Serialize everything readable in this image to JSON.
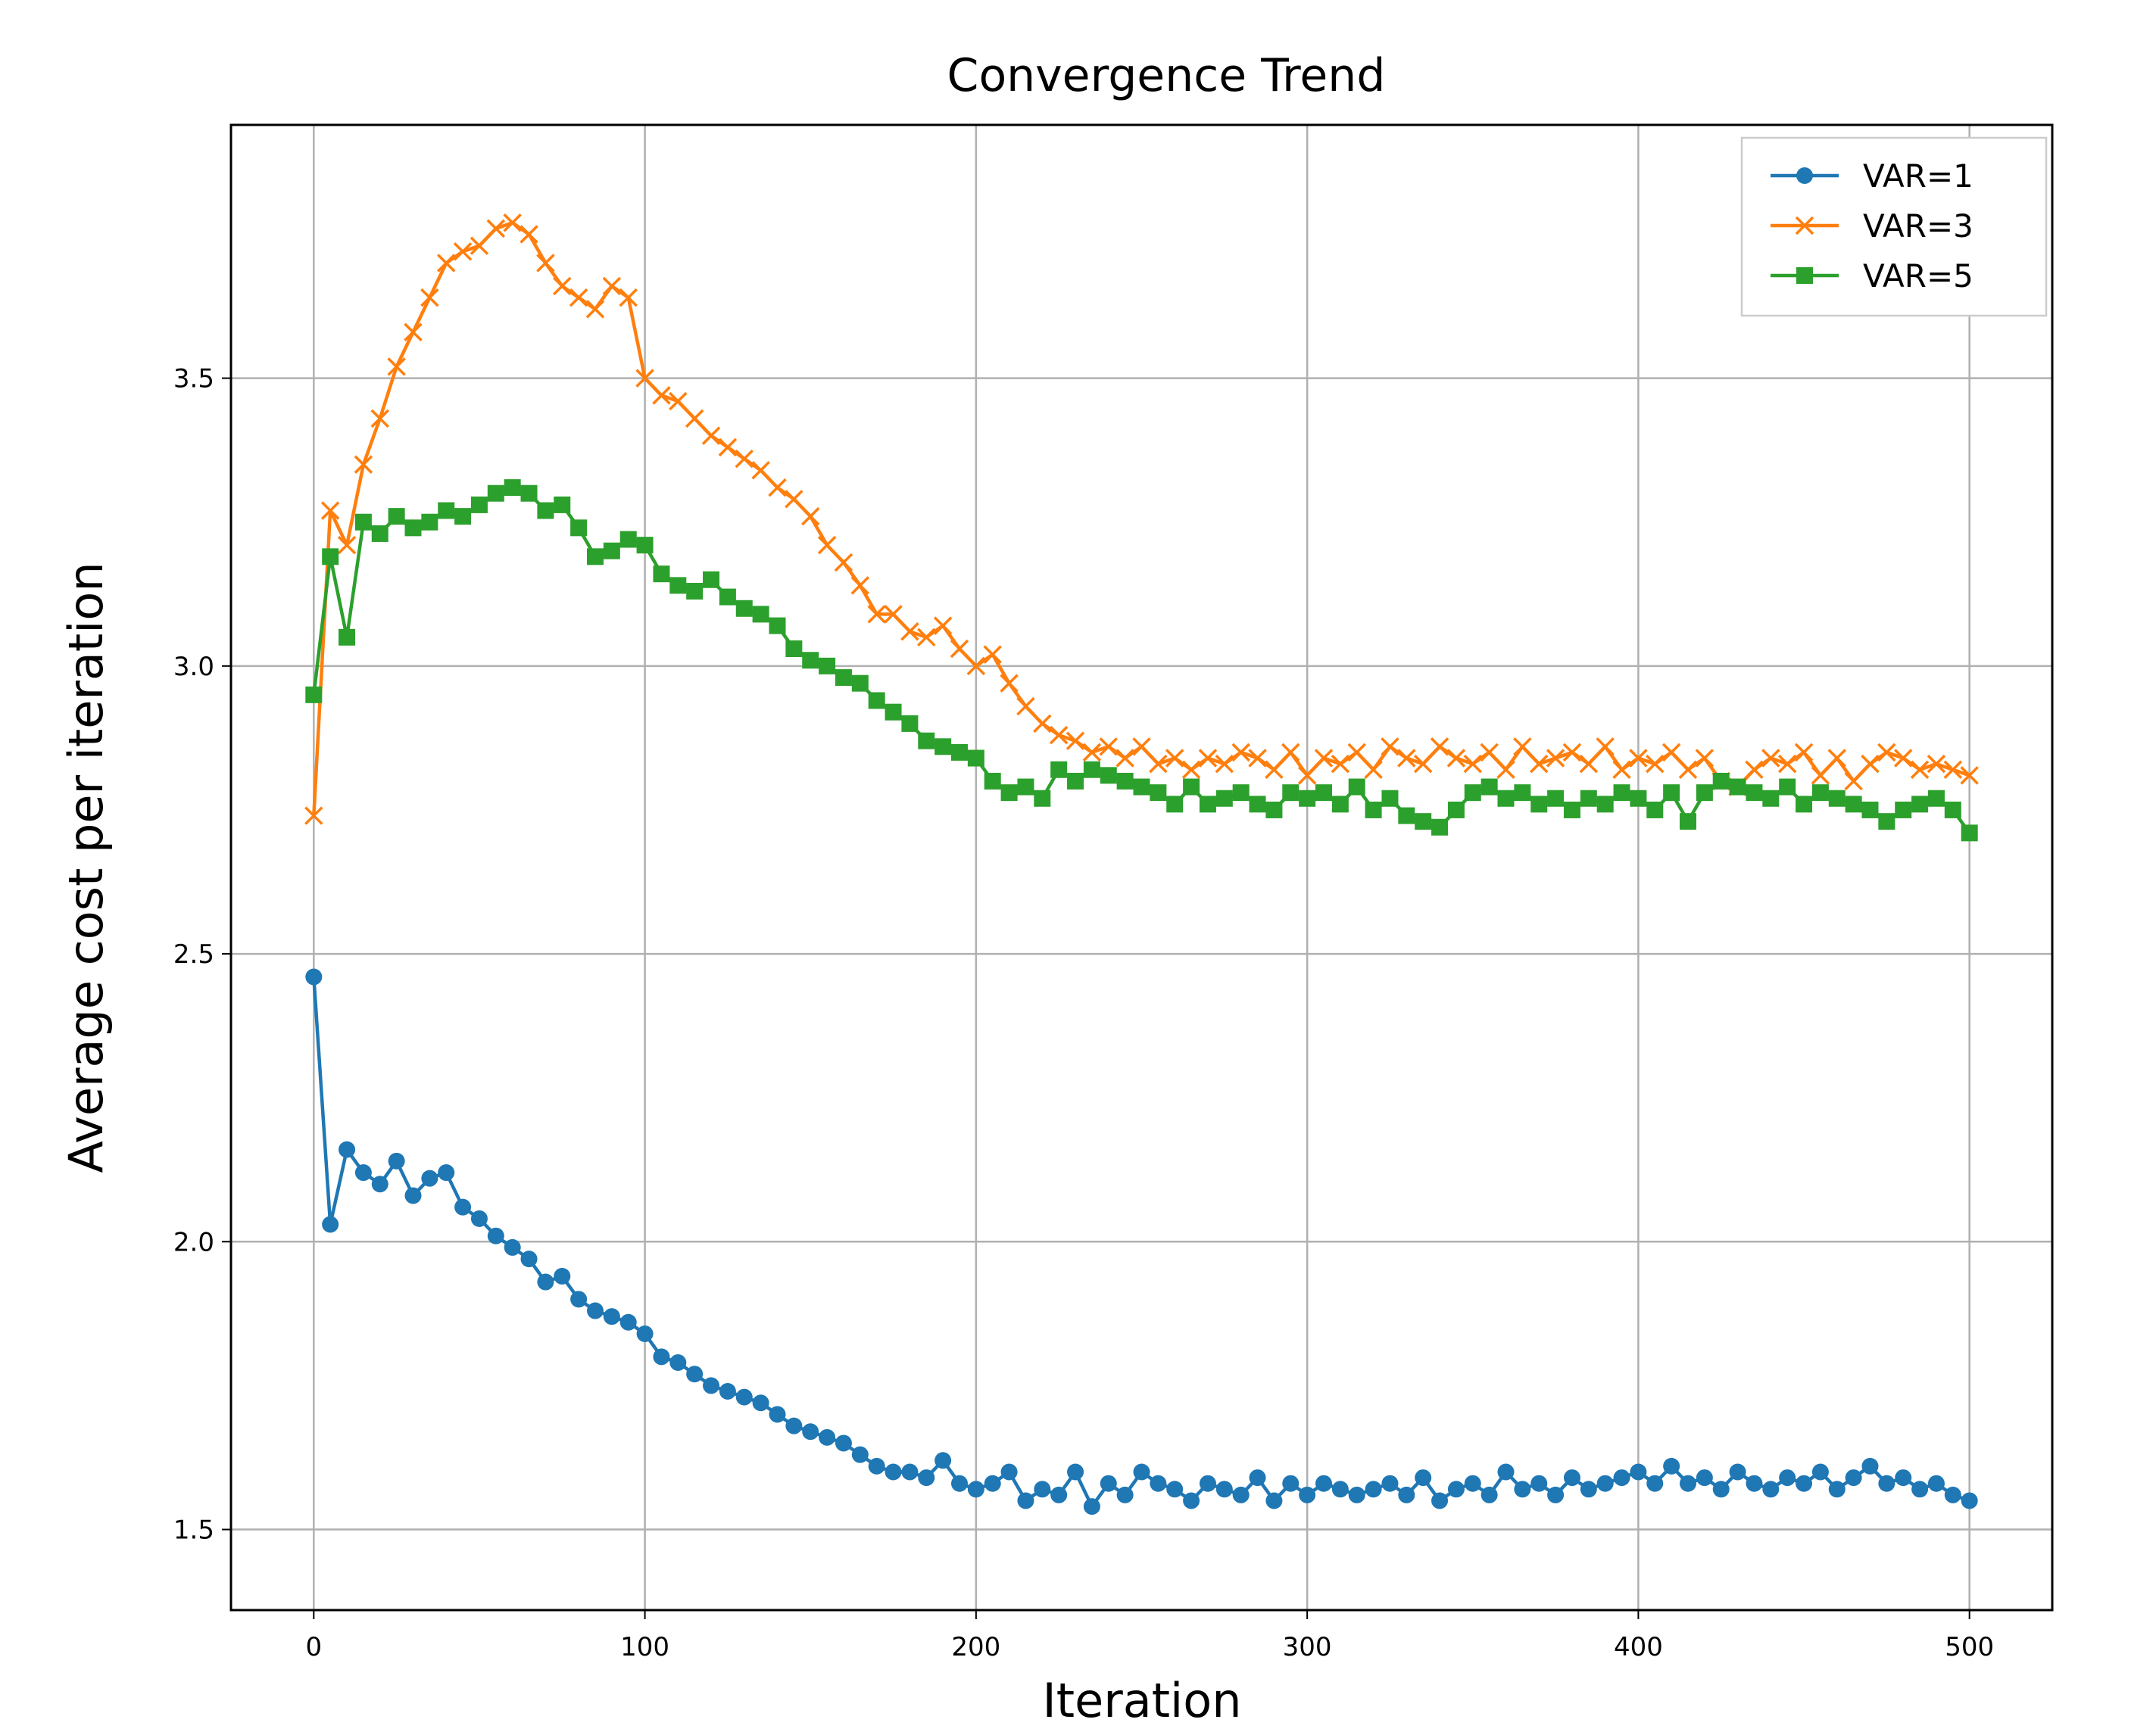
{
  "chart_data": {
    "type": "line",
    "title": "Convergence Trend",
    "xlabel": "Iteration",
    "ylabel": "Average cost per iteration",
    "xlim": [
      -25,
      525
    ],
    "ylim": [
      1.36,
      3.94
    ],
    "xticks": [
      0,
      100,
      200,
      300,
      400,
      500
    ],
    "xtick_labels": [
      "0",
      "100",
      "200",
      "300",
      "400",
      "500"
    ],
    "yticks": [
      1.5,
      2.0,
      2.5,
      3.0,
      3.5
    ],
    "ytick_labels": [
      "1.5",
      "2.0",
      "2.5",
      "3.0",
      "3.5"
    ],
    "grid": true,
    "legend_position": "upper-right",
    "x": [
      0,
      5,
      10,
      15,
      20,
      25,
      30,
      35,
      40,
      45,
      50,
      55,
      60,
      65,
      70,
      75,
      80,
      85,
      90,
      95,
      100,
      105,
      110,
      115,
      120,
      125,
      130,
      135,
      140,
      145,
      150,
      155,
      160,
      165,
      170,
      175,
      180,
      185,
      190,
      195,
      200,
      205,
      210,
      215,
      220,
      225,
      230,
      235,
      240,
      245,
      250,
      255,
      260,
      265,
      270,
      275,
      280,
      285,
      290,
      295,
      300,
      305,
      310,
      315,
      320,
      325,
      330,
      335,
      340,
      345,
      350,
      355,
      360,
      365,
      370,
      375,
      380,
      385,
      390,
      395,
      400,
      405,
      410,
      415,
      420,
      425,
      430,
      435,
      440,
      445,
      450,
      455,
      460,
      465,
      470,
      475,
      480,
      485,
      490,
      495,
      500
    ],
    "series": [
      {
        "name": "VAR=1",
        "color": "#1f77b4",
        "marker": "circle",
        "values": [
          2.46,
          2.03,
          2.16,
          2.12,
          2.1,
          2.14,
          2.08,
          2.11,
          2.12,
          2.06,
          2.04,
          2.01,
          1.99,
          1.97,
          1.93,
          1.94,
          1.9,
          1.88,
          1.87,
          1.86,
          1.84,
          1.8,
          1.79,
          1.77,
          1.75,
          1.74,
          1.73,
          1.72,
          1.7,
          1.68,
          1.67,
          1.66,
          1.65,
          1.63,
          1.61,
          1.6,
          1.6,
          1.59,
          1.62,
          1.58,
          1.57,
          1.58,
          1.6,
          1.55,
          1.57,
          1.56,
          1.6,
          1.54,
          1.58,
          1.56,
          1.6,
          1.58,
          1.57,
          1.55,
          1.58,
          1.57,
          1.56,
          1.59,
          1.55,
          1.58,
          1.56,
          1.58,
          1.57,
          1.56,
          1.57,
          1.58,
          1.56,
          1.59,
          1.55,
          1.57,
          1.58,
          1.56,
          1.6,
          1.57,
          1.58,
          1.56,
          1.59,
          1.57,
          1.58,
          1.59,
          1.6,
          1.58,
          1.61,
          1.58,
          1.59,
          1.57,
          1.6,
          1.58,
          1.57,
          1.59,
          1.58,
          1.6,
          1.57,
          1.59,
          1.61,
          1.58,
          1.59,
          1.57,
          1.58,
          1.56,
          1.55
        ]
      },
      {
        "name": "VAR=3",
        "color": "#ff7f0e",
        "marker": "x",
        "values": [
          2.74,
          3.27,
          3.21,
          3.35,
          3.43,
          3.52,
          3.58,
          3.64,
          3.7,
          3.72,
          3.73,
          3.76,
          3.77,
          3.75,
          3.7,
          3.66,
          3.64,
          3.62,
          3.66,
          3.64,
          3.5,
          3.47,
          3.46,
          3.43,
          3.4,
          3.38,
          3.36,
          3.34,
          3.31,
          3.29,
          3.26,
          3.21,
          3.18,
          3.14,
          3.09,
          3.09,
          3.06,
          3.05,
          3.07,
          3.03,
          3.0,
          3.02,
          2.97,
          2.93,
          2.9,
          2.88,
          2.87,
          2.85,
          2.86,
          2.84,
          2.86,
          2.83,
          2.84,
          2.82,
          2.84,
          2.83,
          2.85,
          2.84,
          2.82,
          2.85,
          2.81,
          2.84,
          2.83,
          2.85,
          2.82,
          2.86,
          2.84,
          2.83,
          2.86,
          2.84,
          2.83,
          2.85,
          2.82,
          2.86,
          2.83,
          2.84,
          2.85,
          2.83,
          2.86,
          2.82,
          2.84,
          2.83,
          2.85,
          2.82,
          2.84,
          2.8,
          2.79,
          2.82,
          2.84,
          2.83,
          2.85,
          2.81,
          2.84,
          2.8,
          2.83,
          2.85,
          2.84,
          2.82,
          2.83,
          2.82,
          2.81
        ]
      },
      {
        "name": "VAR=5",
        "color": "#2ca02c",
        "marker": "square",
        "values": [
          2.95,
          3.19,
          3.05,
          3.25,
          3.23,
          3.26,
          3.24,
          3.25,
          3.27,
          3.26,
          3.28,
          3.3,
          3.31,
          3.3,
          3.27,
          3.28,
          3.24,
          3.19,
          3.2,
          3.22,
          3.21,
          3.16,
          3.14,
          3.13,
          3.15,
          3.12,
          3.1,
          3.09,
          3.07,
          3.03,
          3.01,
          3.0,
          2.98,
          2.97,
          2.94,
          2.92,
          2.9,
          2.87,
          2.86,
          2.85,
          2.84,
          2.8,
          2.78,
          2.79,
          2.77,
          2.82,
          2.8,
          2.82,
          2.81,
          2.8,
          2.79,
          2.78,
          2.76,
          2.79,
          2.76,
          2.77,
          2.78,
          2.76,
          2.75,
          2.78,
          2.77,
          2.78,
          2.76,
          2.79,
          2.75,
          2.77,
          2.74,
          2.73,
          2.72,
          2.75,
          2.78,
          2.79,
          2.77,
          2.78,
          2.76,
          2.77,
          2.75,
          2.77,
          2.76,
          2.78,
          2.77,
          2.75,
          2.78,
          2.73,
          2.78,
          2.8,
          2.79,
          2.78,
          2.77,
          2.79,
          2.76,
          2.78,
          2.77,
          2.76,
          2.75,
          2.73,
          2.75,
          2.76,
          2.77,
          2.75,
          2.71
        ]
      }
    ]
  }
}
